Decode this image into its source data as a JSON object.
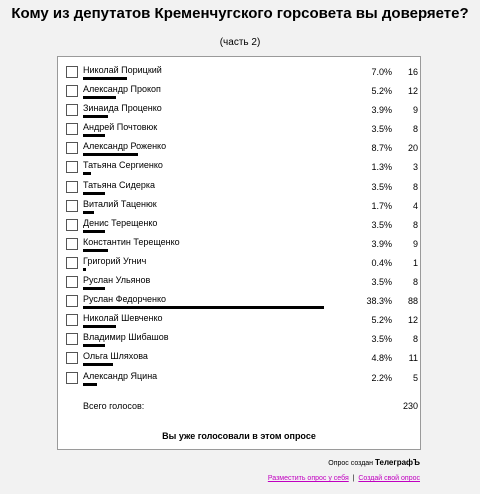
{
  "title": "Кому из депутатов Кременчугского горсовета вы доверяете?",
  "subtitle": "(часть 2)",
  "options": [
    {
      "name": "Николай Порицкий",
      "percent": "7.0%",
      "count": "16",
      "share": 0.07
    },
    {
      "name": "Александр Прокоп",
      "percent": "5.2%",
      "count": "12",
      "share": 0.052
    },
    {
      "name": "Зинаида Проценко",
      "percent": "3.9%",
      "count": "9",
      "share": 0.039
    },
    {
      "name": "Андрей Почтовюк",
      "percent": "3.5%",
      "count": "8",
      "share": 0.035
    },
    {
      "name": "Александр Роженко",
      "percent": "8.7%",
      "count": "20",
      "share": 0.087
    },
    {
      "name": "Татьяна Сергиенко",
      "percent": "1.3%",
      "count": "3",
      "share": 0.013
    },
    {
      "name": "Татьяна Сидерка",
      "percent": "3.5%",
      "count": "8",
      "share": 0.035
    },
    {
      "name": "Виталий Таценюк",
      "percent": "1.7%",
      "count": "4",
      "share": 0.017
    },
    {
      "name": "Денис Терещенко",
      "percent": "3.5%",
      "count": "8",
      "share": 0.035
    },
    {
      "name": "Константин Терещенко",
      "percent": "3.9%",
      "count": "9",
      "share": 0.039
    },
    {
      "name": "Григорий Угнич",
      "percent": "0.4%",
      "count": "1",
      "share": 0.004
    },
    {
      "name": "Руслан Ульянов",
      "percent": "3.5%",
      "count": "8",
      "share": 0.035
    },
    {
      "name": "Руслан Федорченко",
      "percent": "38.3%",
      "count": "88",
      "share": 0.383
    },
    {
      "name": "Николай Шевченко",
      "percent": "5.2%",
      "count": "12",
      "share": 0.052
    },
    {
      "name": "Владимир Шибашов",
      "percent": "3.5%",
      "count": "8",
      "share": 0.035
    },
    {
      "name": "Ольга Шляхова",
      "percent": "4.8%",
      "count": "11",
      "share": 0.048
    },
    {
      "name": "Александр Яцина",
      "percent": "2.2%",
      "count": "5",
      "share": 0.022
    }
  ],
  "total_label": "Всего голосов:",
  "total_value": "230",
  "voted_message": "Вы уже голосовали в этом опросе",
  "created_by": "Опрос создан",
  "brand": "ТелеграфЪ",
  "link_embed": "Разместить опрос у себя",
  "link_create": "Создай свой опрос",
  "colors": {
    "link": "#c000c0",
    "bar": "#000000",
    "page_bg": "#f2f2f2"
  }
}
